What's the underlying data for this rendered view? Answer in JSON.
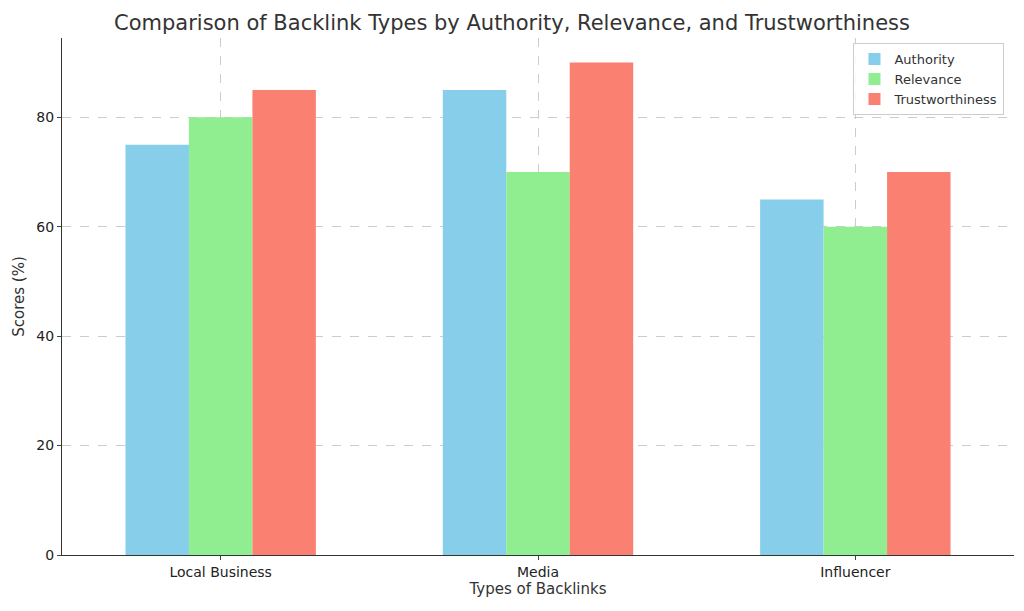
{
  "chart_data": {
    "type": "bar",
    "title": "Comparison of Backlink Types by Authority, Relevance, and Trustworthiness",
    "x_label": "Types of Backlinks",
    "y_label": "Scores (%)",
    "categories": [
      "Local Business",
      "Media",
      "Influencer"
    ],
    "series": [
      {
        "name": "Authority",
        "color": "#87ceeb",
        "values": [
          75,
          85,
          65
        ]
      },
      {
        "name": "Relevance",
        "color": "#90ee90",
        "values": [
          80,
          70,
          60
        ]
      },
      {
        "name": "Trustworthiness",
        "color": "#fa8072",
        "values": [
          85,
          90,
          70
        ]
      }
    ],
    "ylim": [
      0,
      94.5
    ],
    "yticks": [
      0,
      20,
      40,
      60,
      80
    ],
    "grid": true,
    "legend": "upper right"
  }
}
